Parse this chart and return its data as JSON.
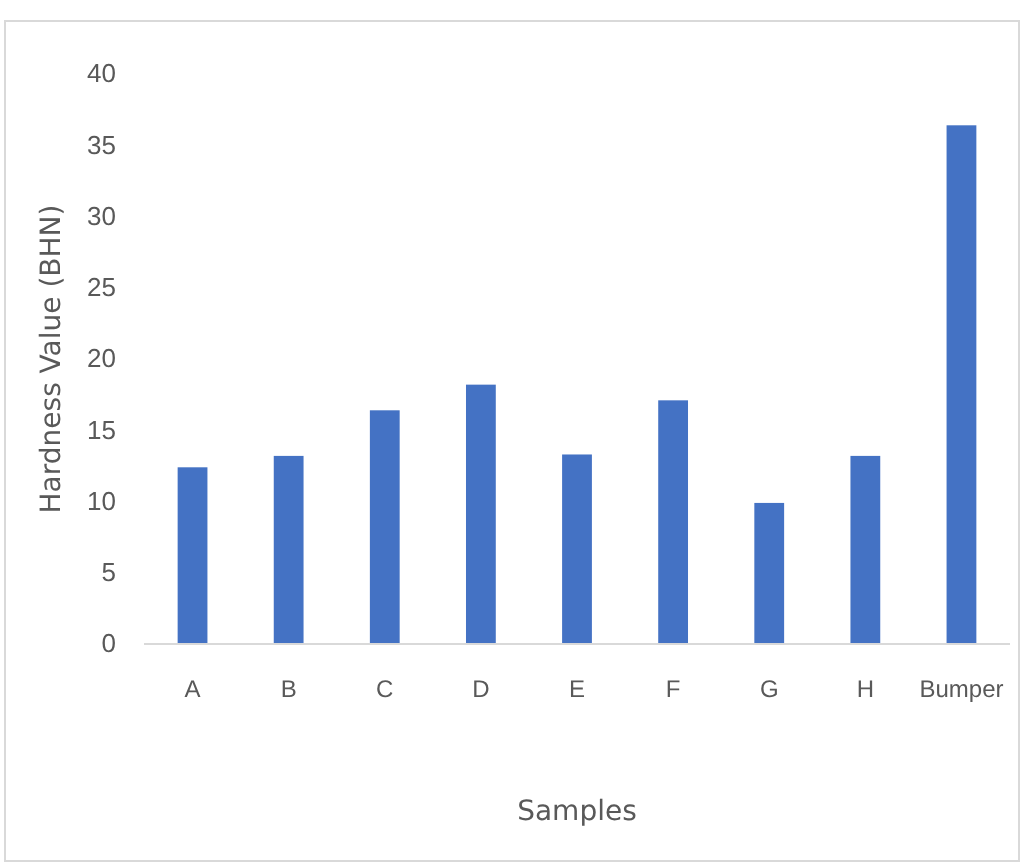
{
  "chart_data": {
    "type": "bar",
    "xlabel": "Samples",
    "ylabel": "Hardness Value (BHN)",
    "categories": [
      "A",
      "B",
      "C",
      "D",
      "E",
      "F",
      "G",
      "H",
      "Bumper"
    ],
    "values": [
      12.4,
      13.2,
      16.4,
      18.2,
      13.3,
      17.1,
      9.9,
      13.2,
      36.4
    ],
    "color": "#4472c4",
    "ylim": [
      0,
      40
    ],
    "yticks": [
      0,
      5,
      10,
      15,
      20,
      25,
      30,
      35,
      40
    ],
    "grid": false
  }
}
